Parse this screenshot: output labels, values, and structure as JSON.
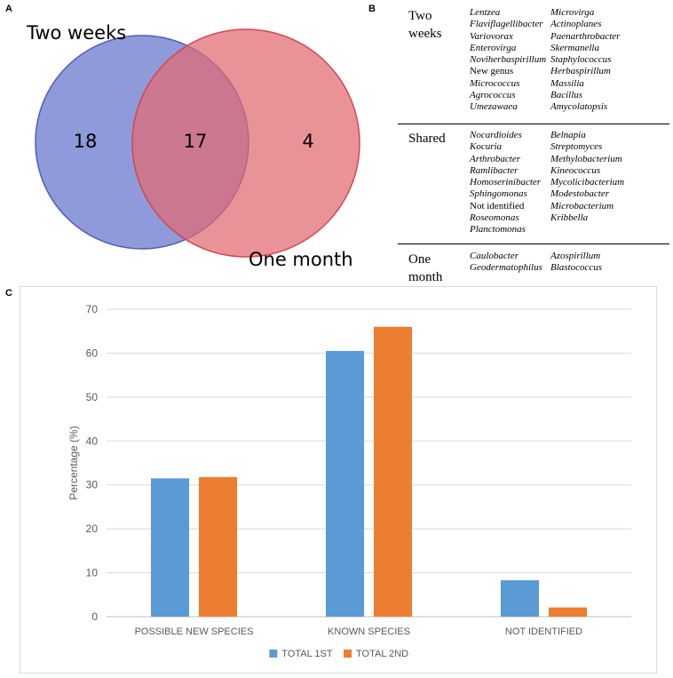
{
  "panel_labels": {
    "a": "A",
    "b": "B",
    "c": "C"
  },
  "venn": {
    "set_a": {
      "label": "Two weeks",
      "count": "18",
      "color": "#6f7ecf"
    },
    "set_b": {
      "label": "One month",
      "count": "4",
      "color": "#e16a72"
    },
    "overlap_count": "17"
  },
  "genera_table": {
    "groups": [
      {
        "label": "Two\nweeks",
        "col1": [
          {
            "text": "Lentzea",
            "italic": true
          },
          {
            "text": "Flaviflagellibacter",
            "italic": true
          },
          {
            "text": "Variovorax",
            "italic": true
          },
          {
            "text": "Enterovirga",
            "italic": true
          },
          {
            "text": "Noviherbaspirillum",
            "italic": true
          },
          {
            "text": "New genus",
            "italic": false
          },
          {
            "text": "Micrococcus",
            "italic": true
          },
          {
            "text": "Agrococcus",
            "italic": true
          },
          {
            "text": "Umezawaea",
            "italic": true
          }
        ],
        "col2": [
          {
            "text": "Microvirga",
            "italic": true
          },
          {
            "text": "Actinoplanes",
            "italic": true
          },
          {
            "text": "Paenarthrobacter",
            "italic": true
          },
          {
            "text": "Skermanella",
            "italic": true
          },
          {
            "text": "Staphylococcus",
            "italic": true
          },
          {
            "text": "Herbaspirillum",
            "italic": true
          },
          {
            "text": "Massilia",
            "italic": true
          },
          {
            "text": "Bacillus",
            "italic": true
          },
          {
            "text": "Amycolatopsis",
            "italic": true
          }
        ]
      },
      {
        "label": "Shared",
        "col1": [
          {
            "text": "Nocardioides",
            "italic": true
          },
          {
            "text": "Kocuria",
            "italic": true
          },
          {
            "text": "Arthrobacter",
            "italic": true
          },
          {
            "text": "Ramlibacter",
            "italic": true
          },
          {
            "text": "Homoserinibacter",
            "italic": true
          },
          {
            "text": "Sphingomonas",
            "italic": true
          },
          {
            "text": "Not identified",
            "italic": false
          },
          {
            "text": "Roseomonas",
            "italic": true
          },
          {
            "text": "Planctomonas",
            "italic": true
          }
        ],
        "col2": [
          {
            "text": "Belnapia",
            "italic": true
          },
          {
            "text": "Streptomyces",
            "italic": true
          },
          {
            "text": "Methylobacterium",
            "italic": true
          },
          {
            "text": "Kineococcus",
            "italic": true
          },
          {
            "text": "Mycolicibacterium",
            "italic": true
          },
          {
            "text": "Modestobacter",
            "italic": true
          },
          {
            "text": "Microbacterium",
            "italic": true
          },
          {
            "text": "Kribbella",
            "italic": true
          }
        ]
      },
      {
        "label": "One\nmonth",
        "col1": [
          {
            "text": "Caulobacter",
            "italic": true
          },
          {
            "text": "Geodermatophilus",
            "italic": true
          }
        ],
        "col2": [
          {
            "text": "Azospirillum",
            "italic": true
          },
          {
            "text": "Blastococcus",
            "italic": true
          }
        ]
      }
    ]
  },
  "chart_data": {
    "type": "bar",
    "title": "",
    "xlabel": "",
    "ylabel": "Percentage (%)",
    "ylim": [
      0,
      70
    ],
    "yticks": [
      0,
      10,
      20,
      30,
      40,
      50,
      60,
      70
    ],
    "grid": true,
    "legend_position": "bottom",
    "categories": [
      "POSSIBLE NEW SPECIES",
      "KNOWN SPECIES",
      "NOT IDENTIFIED"
    ],
    "series": [
      {
        "name": "TOTAL 1ST",
        "values": [
          31.5,
          60.5,
          8.3
        ],
        "color": "#5b9bd5"
      },
      {
        "name": "TOTAL 2ND",
        "values": [
          31.8,
          66.0,
          2.1
        ],
        "color": "#ed7d31"
      }
    ]
  }
}
